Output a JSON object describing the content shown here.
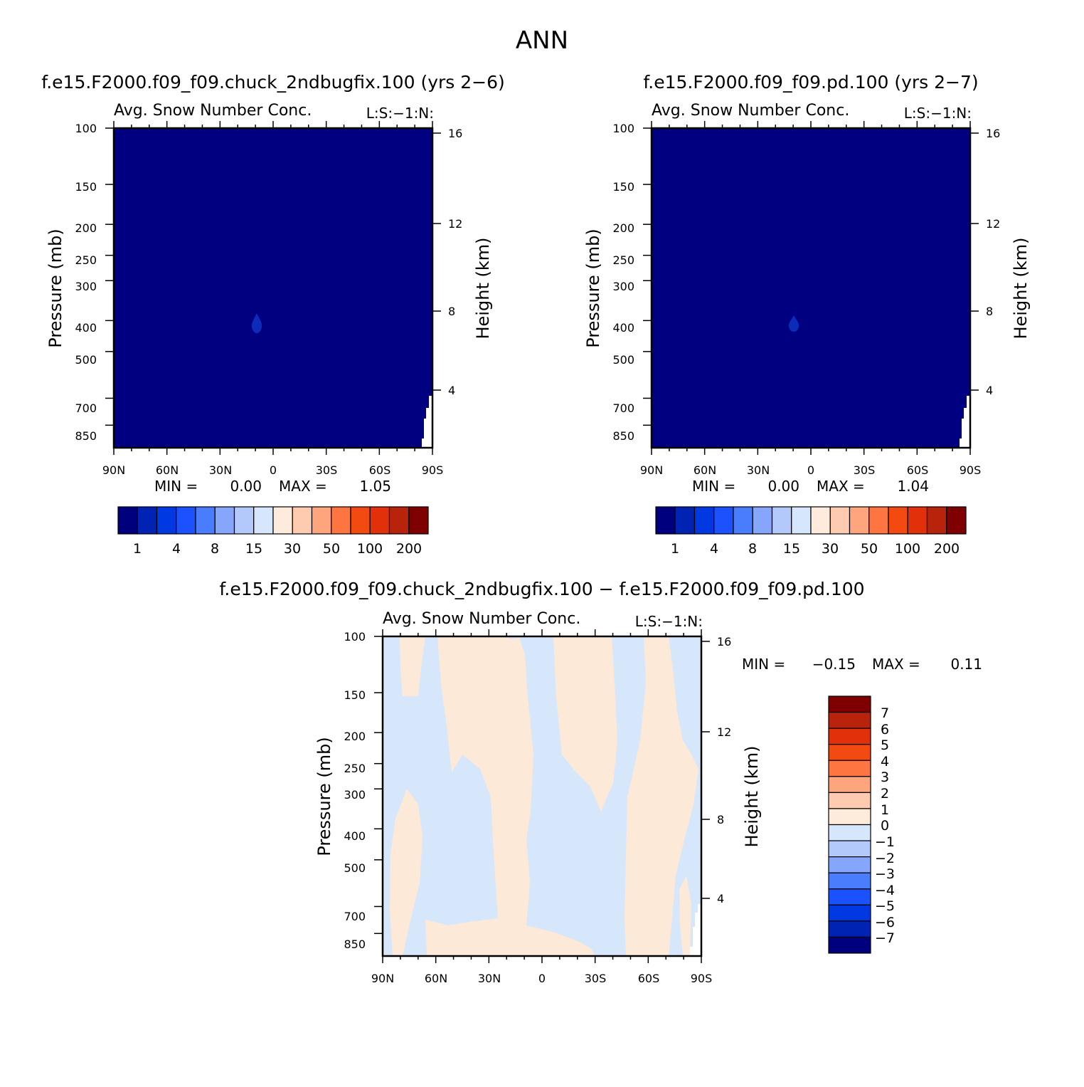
{
  "figure_title": "ANN",
  "colors": {
    "cb_levels": [
      "#00007f",
      "#0023b3",
      "#0038e2",
      "#1c52fe",
      "#4a7dfd",
      "#86a6fb",
      "#b4c9fb",
      "#d6e6fd",
      "#feebdb",
      "#fecab0",
      "#fea57d",
      "#fe7541",
      "#f34a12",
      "#e1300a",
      "#b8230b",
      "#7f0000"
    ],
    "bg_field": "#000080",
    "blob": "#0b2bb8",
    "diff_neg": "#d7e7fb",
    "diff_pos": "#fde9d8"
  },
  "chart_data": [
    {
      "type": "heatmap",
      "title": "f.e15.F2000.f09_f09.chuck_2ndbugfix.100 (yrs 2-6)",
      "subtitle": "Avg. Snow Number Conc.",
      "subtitle_right": "L:S:-1:N:",
      "ylabel": "Pressure (mb)",
      "ylabel_right": "Height (km)",
      "xlim": [
        90,
        -90
      ],
      "x_ticks": [
        90,
        60,
        30,
        0,
        -30,
        -60,
        -90
      ],
      "x_tick_labels": [
        "90N",
        "60N",
        "30N",
        "0",
        "30S",
        "60S",
        "90S"
      ],
      "ylim": [
        100,
        1000
      ],
      "y_scale": "log",
      "y_ticks": [
        100,
        150,
        200,
        250,
        300,
        400,
        500,
        700,
        850
      ],
      "y_tick_labels": [
        "100",
        "150",
        "200",
        "250",
        "300",
        "400",
        "500",
        "700",
        "850"
      ],
      "height_ticks": [
        16,
        12,
        8,
        4
      ],
      "height_tick_labels": [
        "16",
        "12",
        "8",
        "4"
      ],
      "min_label": "MIN =",
      "min_value": "0.00",
      "max_label": "MAX =",
      "max_value": "1.05",
      "colorbar": {
        "orientation": "horizontal",
        "labels": [
          "1",
          "4",
          "8",
          "15",
          "30",
          "50",
          "100",
          "200"
        ]
      }
    },
    {
      "type": "heatmap",
      "title": "f.e15.F2000.f09_f09.pd.100 (yrs 2-7)",
      "subtitle": "Avg. Snow Number Conc.",
      "subtitle_right": "L:S:-1:N:",
      "ylabel": "Pressure (mb)",
      "ylabel_right": "Height (km)",
      "xlim": [
        90,
        -90
      ],
      "x_ticks": [
        90,
        60,
        30,
        0,
        -30,
        -60,
        -90
      ],
      "x_tick_labels": [
        "90N",
        "60N",
        "30N",
        "0",
        "30S",
        "60S",
        "90S"
      ],
      "ylim": [
        100,
        1000
      ],
      "y_scale": "log",
      "y_ticks": [
        100,
        150,
        200,
        250,
        300,
        400,
        500,
        700,
        850
      ],
      "y_tick_labels": [
        "100",
        "150",
        "200",
        "250",
        "300",
        "400",
        "500",
        "700",
        "850"
      ],
      "height_ticks": [
        16,
        12,
        8,
        4
      ],
      "height_tick_labels": [
        "16",
        "12",
        "8",
        "4"
      ],
      "min_label": "MIN =",
      "min_value": "0.00",
      "max_label": "MAX =",
      "max_value": "1.04",
      "colorbar": {
        "orientation": "horizontal",
        "labels": [
          "1",
          "4",
          "8",
          "15",
          "30",
          "50",
          "100",
          "200"
        ]
      }
    },
    {
      "type": "heatmap",
      "title": "f.e15.F2000.f09_f09.chuck_2ndbugfix.100 - f.e15.F2000.f09_f09.pd.100",
      "subtitle": "Avg. Snow Number Conc.",
      "subtitle_right": "L:S:-1:N:",
      "ylabel": "Pressure (mb)",
      "ylabel_right": "Height (km)",
      "xlim": [
        90,
        -90
      ],
      "x_ticks": [
        90,
        60,
        30,
        0,
        -30,
        -60,
        -90
      ],
      "x_tick_labels": [
        "90N",
        "60N",
        "30N",
        "0",
        "30S",
        "60S",
        "90S"
      ],
      "ylim": [
        100,
        1000
      ],
      "y_scale": "log",
      "y_ticks": [
        100,
        150,
        200,
        250,
        300,
        400,
        500,
        700,
        850
      ],
      "y_tick_labels": [
        "100",
        "150",
        "200",
        "250",
        "300",
        "400",
        "500",
        "700",
        "850"
      ],
      "height_ticks": [
        16,
        12,
        8,
        4
      ],
      "height_tick_labels": [
        "16",
        "12",
        "8",
        "4"
      ],
      "min_label": "MIN =",
      "min_value": "-0.15",
      "max_label": "MAX =",
      "max_value": "0.11",
      "colorbar": {
        "orientation": "vertical",
        "labels": [
          "7",
          "6",
          "5",
          "4",
          "3",
          "2",
          "1",
          "0",
          "-1",
          "-2",
          "-3",
          "-4",
          "-5",
          "-6",
          "-7"
        ]
      }
    }
  ]
}
